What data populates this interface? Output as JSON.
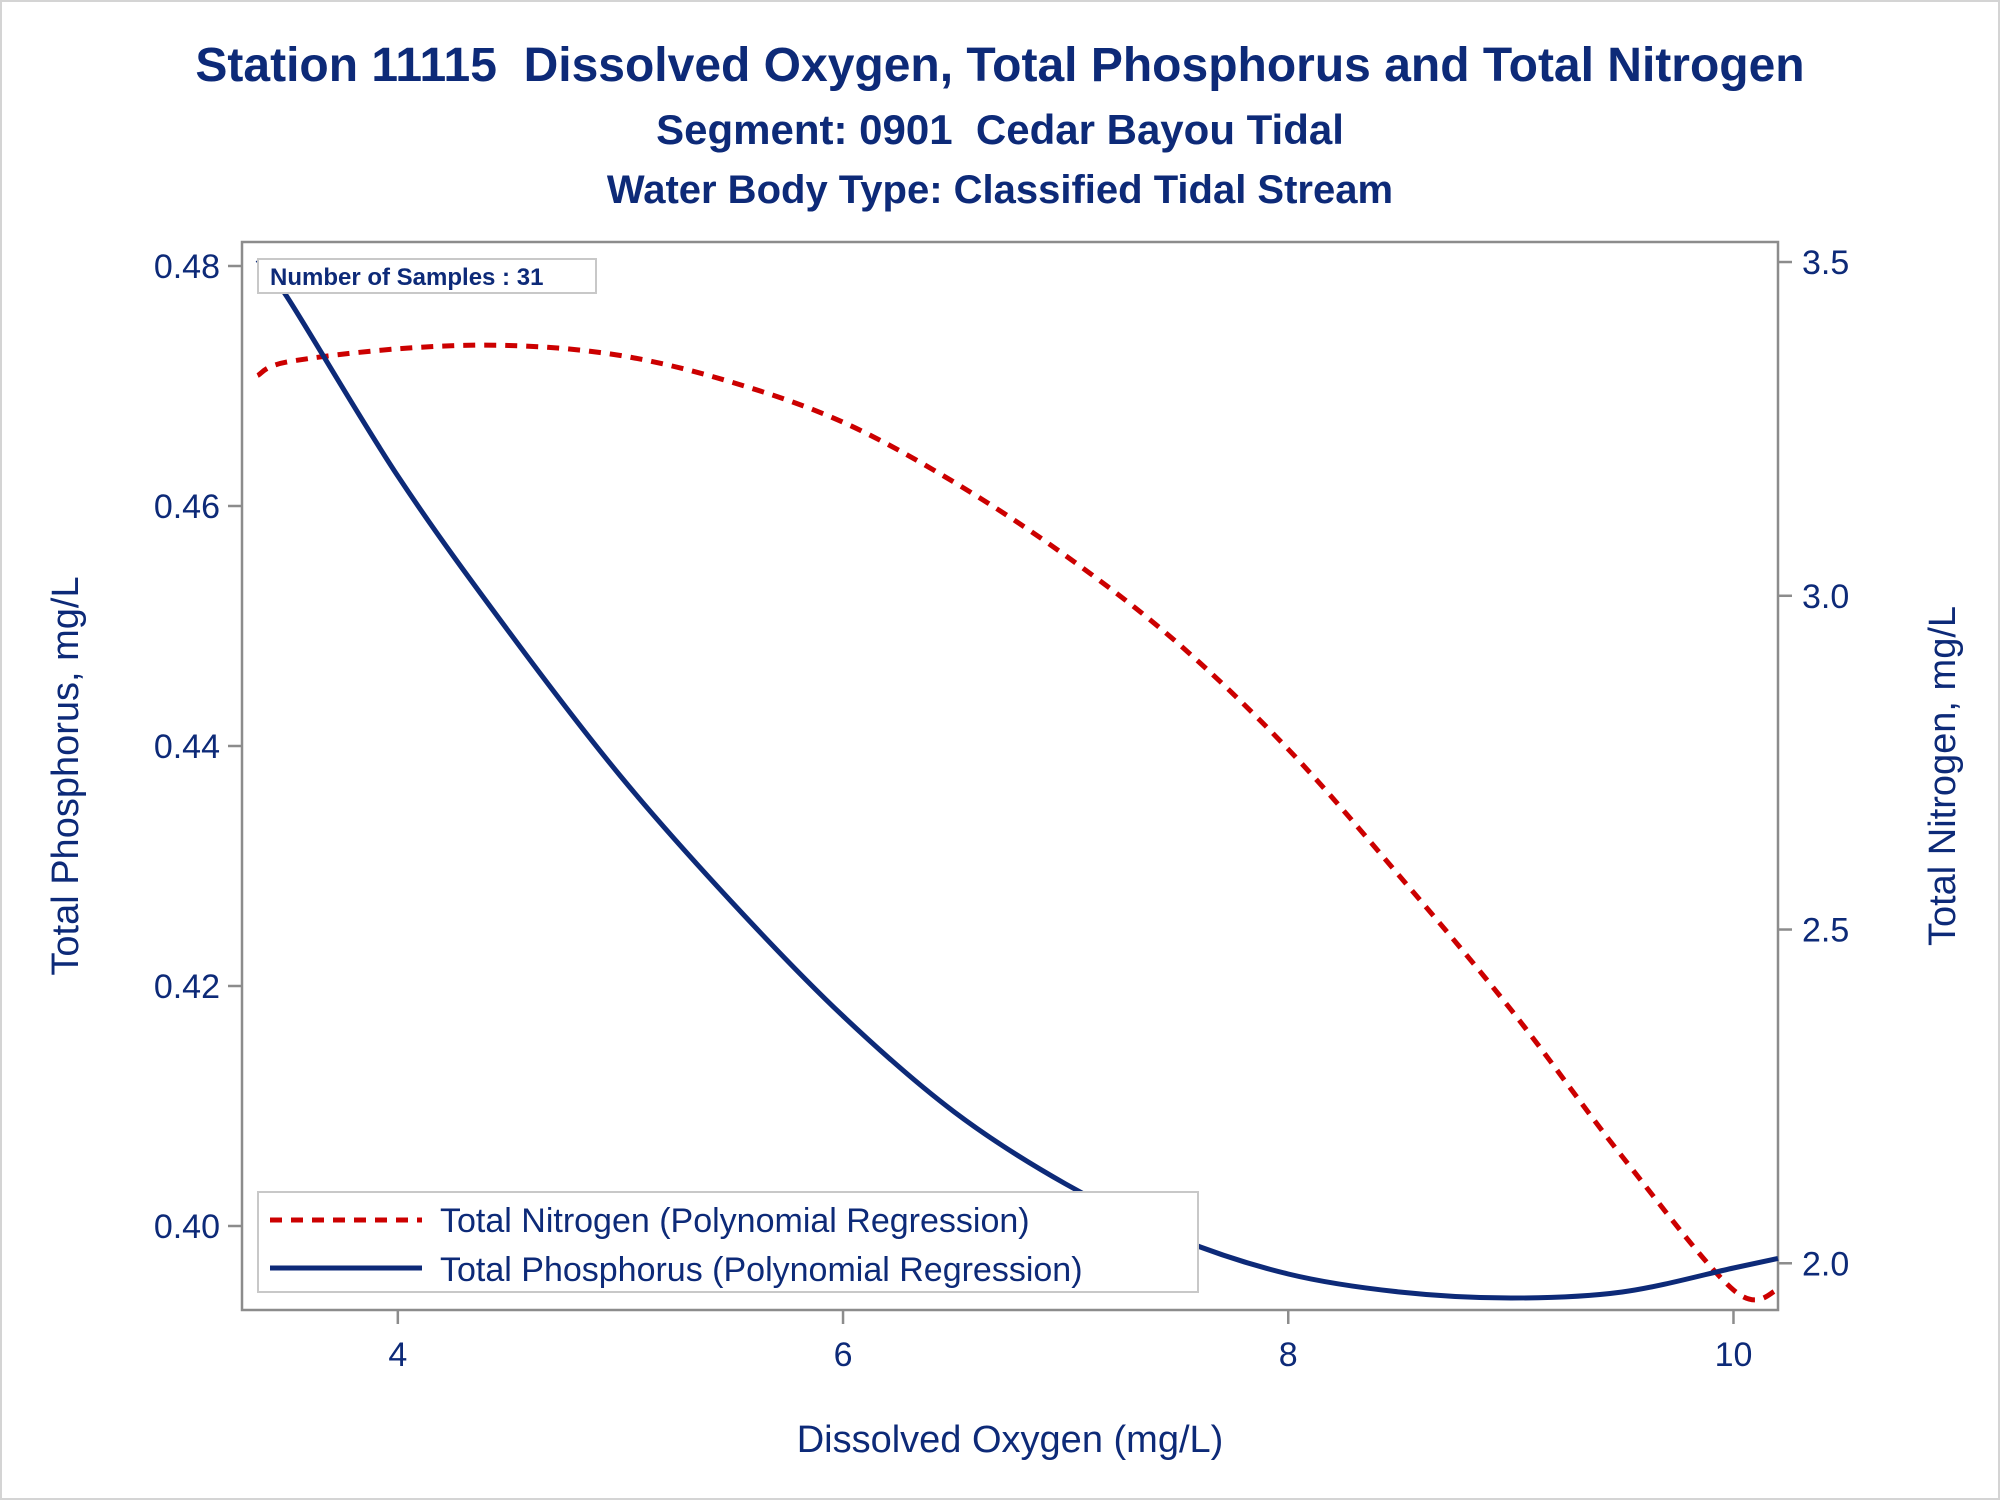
{
  "chart_data": {
    "type": "line",
    "title": "Station 11115  Dissolved Oxygen, Total Phosphorus and Total Nitrogen",
    "subtitle": "Segment: 0901  Cedar Bayou Tidal",
    "subtitle2": "Water Body Type: Classified Tidal Stream",
    "xlabel": "Dissolved Oxygen (mg/L)",
    "ylabel": "Total Phosphorus, mg/L",
    "y2label": "Total Nitrogen, mg/L",
    "xlim": [
      3.3,
      10.2
    ],
    "ylim": [
      0.393,
      0.482
    ],
    "y2lim": [
      1.93,
      3.53
    ],
    "x_ticks": [
      4,
      6,
      8,
      10
    ],
    "y_ticks": [
      0.4,
      0.42,
      0.44,
      0.46,
      0.48
    ],
    "y_tick_labels": [
      "0.40",
      "0.42",
      "0.44",
      "0.46",
      "0.48"
    ],
    "y2_ticks": [
      2.0,
      2.5,
      3.0,
      3.5
    ],
    "y2_tick_labels": [
      "2.0",
      "2.5",
      "3.0",
      "3.5"
    ],
    "annotation": "Number of Samples : 31",
    "legend_position": "bottom-left",
    "grid": false,
    "series": [
      {
        "name": "Total Nitrogen (Polynomial Regression)",
        "axis": "y2",
        "style": "dashed",
        "color": "#cc0000",
        "x": [
          3.37,
          3.5,
          4.0,
          4.5,
          5.0,
          5.5,
          6.0,
          6.5,
          7.0,
          7.5,
          8.0,
          8.5,
          9.0,
          9.5,
          10.0,
          10.2
        ],
        "values": [
          3.33,
          3.35,
          3.37,
          3.375,
          3.36,
          3.32,
          3.26,
          3.17,
          3.06,
          2.93,
          2.77,
          2.58,
          2.38,
          2.16,
          1.96,
          1.96
        ]
      },
      {
        "name": "Total Phosphorus (Polynomial Regression)",
        "axis": "y",
        "style": "solid",
        "color": "#0d2a78",
        "x": [
          3.37,
          3.5,
          4.0,
          4.5,
          5.0,
          5.5,
          6.0,
          6.5,
          7.0,
          7.5,
          8.0,
          8.5,
          9.0,
          9.5,
          10.0,
          10.2
        ],
        "values": [
          0.4805,
          0.4775,
          0.4625,
          0.4495,
          0.4375,
          0.427,
          0.4175,
          0.4095,
          0.4035,
          0.399,
          0.396,
          0.3945,
          0.394,
          0.3945,
          0.3965,
          0.3973
        ]
      }
    ]
  }
}
